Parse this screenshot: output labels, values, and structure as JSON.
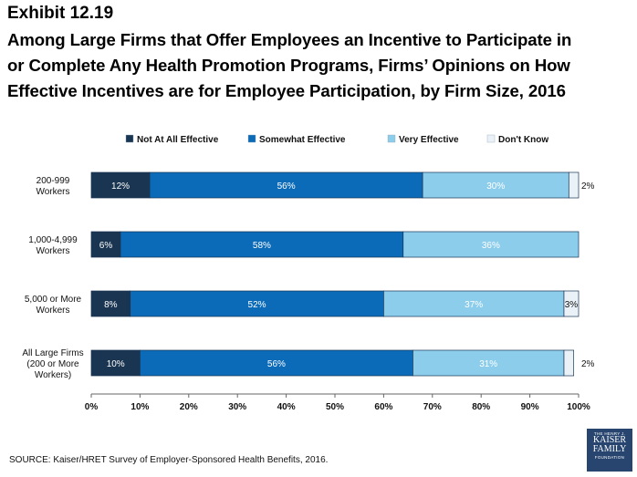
{
  "header": {
    "exhibit": "Exhibit 12.19",
    "title_lines": [
      "Among Large Firms that Offer Employees an Incentive to Participate in",
      "or Complete Any Health Promotion Programs, Firms’ Opinions on How",
      "Effective Incentives are for Employee Participation, by Firm Size, 2016"
    ]
  },
  "chart_data": {
    "type": "bar",
    "orientation": "horizontal",
    "stacked": true,
    "categories": [
      [
        "200-999",
        "Workers"
      ],
      [
        "1,000-4,999",
        "Workers"
      ],
      [
        "5,000 or More",
        "Workers"
      ],
      [
        "All Large Firms",
        "(200 or More",
        "Workers)"
      ]
    ],
    "series": [
      {
        "name": "Not At All Effective",
        "color": "#1a3552",
        "values": [
          12,
          6,
          8,
          10
        ],
        "labels": [
          "12%",
          "6%",
          "8%",
          "10%"
        ]
      },
      {
        "name": "Somewhat Effective",
        "color": "#0b6bb8",
        "values": [
          56,
          58,
          52,
          56
        ],
        "labels": [
          "56%",
          "58%",
          "52%",
          "56%"
        ]
      },
      {
        "name": "Very Effective",
        "color": "#8ccdec",
        "values": [
          30,
          36,
          37,
          31
        ],
        "labels": [
          "30%",
          "36%",
          "37%",
          "31%"
        ]
      },
      {
        "name": "Don't Know",
        "color": "#eaf2f8",
        "values": [
          2,
          0,
          3,
          2
        ],
        "labels": [
          "2%",
          "",
          "3%",
          "2%"
        ]
      }
    ],
    "xlim": [
      0,
      100
    ],
    "x_ticks": [
      "0%",
      "10%",
      "20%",
      "30%",
      "40%",
      "50%",
      "60%",
      "70%",
      "80%",
      "90%",
      "100%"
    ],
    "legend_position": "top",
    "grid": false
  },
  "footer": {
    "source": "SOURCE: Kaiser/HRET Survey of Employer-Sponsored Health Benefits, 2016."
  },
  "logo": {
    "line1": "THE HENRY J.",
    "line2": "KAISER",
    "line3": "FAMILY",
    "line4": "FOUNDATION"
  }
}
